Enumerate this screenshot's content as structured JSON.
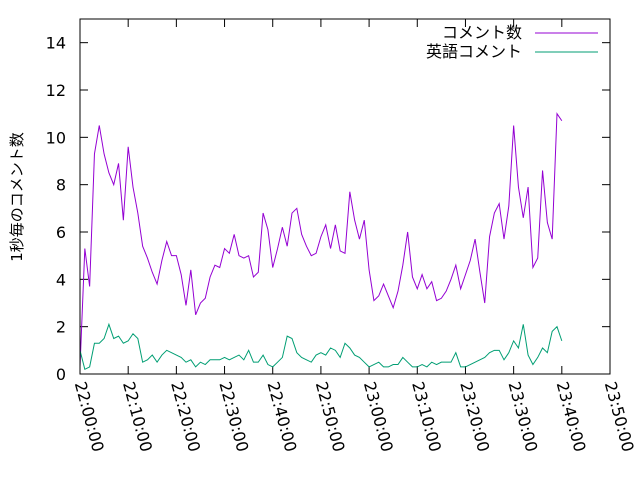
{
  "chart_data": {
    "type": "line",
    "ylabel": "1秒毎のコメント数",
    "xlabel": "",
    "ylim": [
      0,
      15
    ],
    "yticks": [
      "0",
      "2",
      "4",
      "6",
      "8",
      "10",
      "12",
      "14"
    ],
    "ytick_values": [
      0,
      2,
      4,
      6,
      8,
      10,
      12,
      14
    ],
    "xlim": [
      "22:00:00",
      "23:50:00"
    ],
    "xticks": [
      "22:00:00",
      "22:10:00",
      "22:20:00",
      "22:30:00",
      "22:40:00",
      "22:50:00",
      "23:00:00",
      "23:10:00",
      "23:20:00",
      "23:30:00",
      "23:40:00",
      "23:50:00"
    ],
    "grid": false,
    "legend_position": "top-right",
    "series": [
      {
        "name": "コメント数",
        "color": "#9400d3",
        "x": [
          "22:00:00",
          "22:01:00",
          "22:02:00",
          "22:03:00",
          "22:04:00",
          "22:05:00",
          "22:06:00",
          "22:07:00",
          "22:08:00",
          "22:09:00",
          "22:10:00",
          "22:11:00",
          "22:12:00",
          "22:13:00",
          "22:14:00",
          "22:15:00",
          "22:16:00",
          "22:17:00",
          "22:18:00",
          "22:19:00",
          "22:20:00",
          "22:21:00",
          "22:22:00",
          "22:23:00",
          "22:24:00",
          "22:25:00",
          "22:26:00",
          "22:27:00",
          "22:28:00",
          "22:29:00",
          "22:30:00",
          "22:31:00",
          "22:32:00",
          "22:33:00",
          "22:34:00",
          "22:35:00",
          "22:36:00",
          "22:37:00",
          "22:38:00",
          "22:39:00",
          "22:40:00",
          "22:41:00",
          "22:42:00",
          "22:43:00",
          "22:44:00",
          "22:45:00",
          "22:46:00",
          "22:47:00",
          "22:48:00",
          "22:49:00",
          "22:50:00",
          "22:51:00",
          "22:52:00",
          "22:53:00",
          "22:54:00",
          "22:55:00",
          "22:56:00",
          "22:57:00",
          "22:58:00",
          "22:59:00",
          "23:00:00",
          "23:01:00",
          "23:02:00",
          "23:03:00",
          "23:04:00",
          "23:05:00",
          "23:06:00",
          "23:07:00",
          "23:08:00",
          "23:09:00",
          "23:10:00",
          "23:11:00",
          "23:12:00",
          "23:13:00",
          "23:14:00",
          "23:15:00",
          "23:16:00",
          "23:17:00",
          "23:18:00",
          "23:19:00",
          "23:20:00",
          "23:21:00",
          "23:22:00",
          "23:23:00",
          "23:24:00",
          "23:25:00",
          "23:26:00",
          "23:27:00",
          "23:28:00",
          "23:29:00",
          "23:30:00",
          "23:31:00",
          "23:32:00",
          "23:33:00",
          "23:34:00",
          "23:35:00",
          "23:36:00",
          "23:37:00",
          "23:38:00",
          "23:39:00",
          "23:40:00"
        ],
        "values": [
          0.3,
          5.3,
          3.7,
          9.3,
          10.5,
          9.3,
          8.5,
          8.0,
          8.9,
          6.5,
          9.6,
          7.9,
          6.8,
          5.4,
          4.9,
          4.3,
          3.8,
          4.8,
          5.6,
          5.0,
          5.0,
          4.2,
          2.9,
          4.4,
          2.5,
          3.0,
          3.2,
          4.1,
          4.6,
          4.5,
          5.3,
          5.1,
          5.9,
          5.0,
          4.9,
          5.0,
          4.1,
          4.3,
          6.8,
          6.1,
          4.5,
          5.3,
          6.2,
          5.4,
          6.8,
          7.0,
          5.9,
          5.4,
          5.0,
          5.1,
          5.8,
          6.3,
          5.3,
          6.3,
          5.2,
          5.1,
          7.7,
          6.5,
          5.7,
          6.5,
          4.4,
          3.1,
          3.3,
          3.8,
          3.3,
          2.8,
          3.5,
          4.6,
          6.0,
          4.1,
          3.6,
          4.2,
          3.6,
          3.9,
          3.1,
          3.2,
          3.5,
          4.0,
          4.6,
          3.6,
          4.2,
          4.8,
          5.7,
          4.3,
          3.0,
          5.8,
          6.8,
          7.2,
          5.7,
          7.1,
          10.5,
          7.9,
          6.6,
          7.9,
          4.5,
          4.9,
          8.6,
          6.4,
          5.7,
          11.0,
          10.7
        ]
      },
      {
        "name": "英語コメント",
        "color": "#009e73",
        "x": [
          "22:00:00",
          "22:01:00",
          "22:02:00",
          "22:03:00",
          "22:04:00",
          "22:05:00",
          "22:06:00",
          "22:07:00",
          "22:08:00",
          "22:09:00",
          "22:10:00",
          "22:11:00",
          "22:12:00",
          "22:13:00",
          "22:14:00",
          "22:15:00",
          "22:16:00",
          "22:17:00",
          "22:18:00",
          "22:19:00",
          "22:20:00",
          "22:21:00",
          "22:22:00",
          "22:23:00",
          "22:24:00",
          "22:25:00",
          "22:26:00",
          "22:27:00",
          "22:28:00",
          "22:29:00",
          "22:30:00",
          "22:31:00",
          "22:32:00",
          "22:33:00",
          "22:34:00",
          "22:35:00",
          "22:36:00",
          "22:37:00",
          "22:38:00",
          "22:39:00",
          "22:40:00",
          "22:41:00",
          "22:42:00",
          "22:43:00",
          "22:44:00",
          "22:45:00",
          "22:46:00",
          "22:47:00",
          "22:48:00",
          "22:49:00",
          "22:50:00",
          "22:51:00",
          "22:52:00",
          "22:53:00",
          "22:54:00",
          "22:55:00",
          "22:56:00",
          "22:57:00",
          "22:58:00",
          "22:59:00",
          "23:00:00",
          "23:01:00",
          "23:02:00",
          "23:03:00",
          "23:04:00",
          "23:05:00",
          "23:06:00",
          "23:07:00",
          "23:08:00",
          "23:09:00",
          "23:10:00",
          "23:11:00",
          "23:12:00",
          "23:13:00",
          "23:14:00",
          "23:15:00",
          "23:16:00",
          "23:17:00",
          "23:18:00",
          "23:19:00",
          "23:20:00",
          "23:21:00",
          "23:22:00",
          "23:23:00",
          "23:24:00",
          "23:25:00",
          "23:26:00",
          "23:27:00",
          "23:28:00",
          "23:29:00",
          "23:30:00",
          "23:31:00",
          "23:32:00",
          "23:33:00",
          "23:34:00",
          "23:35:00",
          "23:36:00",
          "23:37:00",
          "23:38:00",
          "23:39:00",
          "23:40:00"
        ],
        "values": [
          1.0,
          0.2,
          0.3,
          1.3,
          1.3,
          1.5,
          2.1,
          1.5,
          1.6,
          1.3,
          1.4,
          1.7,
          1.5,
          0.5,
          0.6,
          0.8,
          0.5,
          0.8,
          1.0,
          0.9,
          0.8,
          0.7,
          0.5,
          0.6,
          0.3,
          0.5,
          0.4,
          0.6,
          0.6,
          0.6,
          0.7,
          0.6,
          0.7,
          0.8,
          0.6,
          1.0,
          0.5,
          0.5,
          0.8,
          0.4,
          0.3,
          0.5,
          0.7,
          1.6,
          1.5,
          0.9,
          0.7,
          0.6,
          0.5,
          0.8,
          0.9,
          0.8,
          1.1,
          1.0,
          0.7,
          1.3,
          1.1,
          0.8,
          0.7,
          0.5,
          0.3,
          0.4,
          0.5,
          0.3,
          0.3,
          0.4,
          0.4,
          0.7,
          0.5,
          0.3,
          0.3,
          0.4,
          0.3,
          0.5,
          0.4,
          0.5,
          0.5,
          0.5,
          0.9,
          0.3,
          0.3,
          0.4,
          0.5,
          0.6,
          0.7,
          0.9,
          1.0,
          1.0,
          0.6,
          0.9,
          1.4,
          1.1,
          2.1,
          0.8,
          0.4,
          0.7,
          1.1,
          0.9,
          1.8,
          2.0,
          1.4
        ]
      }
    ]
  }
}
